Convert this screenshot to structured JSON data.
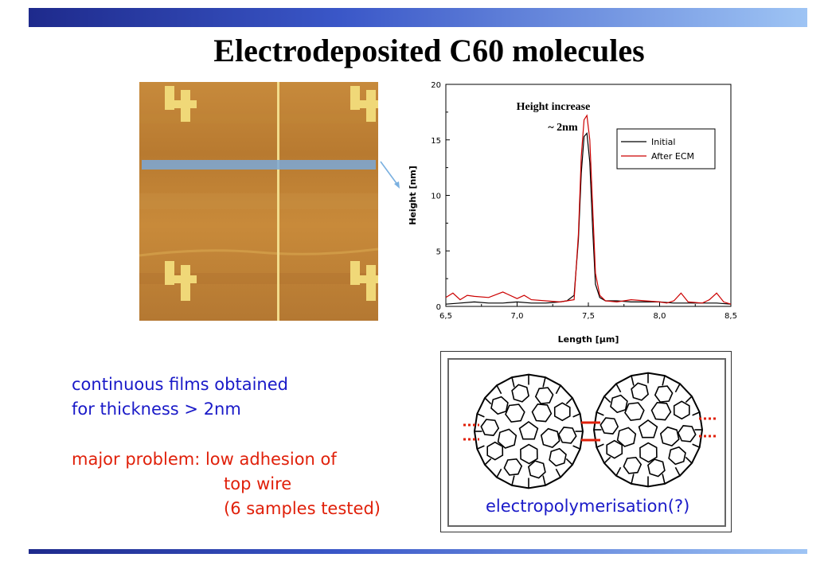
{
  "slide": {
    "title": "Electrodeposited C60 molecules"
  },
  "afm_image": {
    "wire_labels": [
      "4",
      "4",
      "4",
      "4"
    ]
  },
  "text": {
    "line1": "continuous films obtained",
    "line2": "for thickness > 2nm",
    "line3": "major problem: low adhesion of",
    "line4": "top wire",
    "line5": "(6 samples tested)"
  },
  "molecule_panel": {
    "caption": "electropolymerisation(?)"
  },
  "colors": {
    "accent_blue": "#1a1ac8",
    "accent_red": "#e0200a",
    "initial_series": "#000000",
    "after_series": "#cc0000",
    "afm_base": "#b87830",
    "afm_highlight": "#f0d878",
    "scan_line": "#7aa8d8"
  },
  "chart_data": {
    "type": "line",
    "annotation_line1": "Height increase",
    "annotation_line2": "~ 2nm",
    "xlabel": "Length [μm]",
    "ylabel": "Height [nm]",
    "xlim": [
      6.5,
      8.5
    ],
    "ylim": [
      0,
      20
    ],
    "xticks": [
      "6,5",
      "7,0",
      "7,5",
      "8,0",
      "8,5"
    ],
    "yticks": [
      "0",
      "5",
      "10",
      "15",
      "20"
    ],
    "grid": false,
    "legend_position": "top-right",
    "series": [
      {
        "name": "Initial",
        "color": "#000000",
        "x": [
          6.5,
          6.6,
          6.7,
          6.8,
          6.9,
          7.0,
          7.1,
          7.2,
          7.3,
          7.35,
          7.4,
          7.43,
          7.45,
          7.47,
          7.49,
          7.51,
          7.53,
          7.55,
          7.58,
          7.62,
          7.7,
          7.8,
          7.9,
          8.0,
          8.1,
          8.2,
          8.3,
          8.4,
          8.5
        ],
        "y": [
          0.2,
          0.3,
          0.4,
          0.3,
          0.3,
          0.4,
          0.3,
          0.3,
          0.4,
          0.5,
          1.0,
          6.0,
          12.0,
          15.3,
          15.6,
          13.0,
          7.0,
          2.0,
          0.8,
          0.5,
          0.5,
          0.4,
          0.4,
          0.4,
          0.3,
          0.3,
          0.3,
          0.3,
          0.2
        ]
      },
      {
        "name": "After ECM",
        "color": "#cc0000",
        "x": [
          6.5,
          6.55,
          6.6,
          6.65,
          6.7,
          6.8,
          6.9,
          7.0,
          7.05,
          7.1,
          7.2,
          7.3,
          7.35,
          7.4,
          7.43,
          7.45,
          7.47,
          7.49,
          7.51,
          7.53,
          7.55,
          7.58,
          7.62,
          7.7,
          7.8,
          7.9,
          8.0,
          8.05,
          8.1,
          8.15,
          8.2,
          8.3,
          8.35,
          8.4,
          8.45,
          8.5
        ],
        "y": [
          0.8,
          1.2,
          0.6,
          1.0,
          0.9,
          0.8,
          1.3,
          0.7,
          1.0,
          0.6,
          0.5,
          0.4,
          0.5,
          0.6,
          6.5,
          13.5,
          16.8,
          17.2,
          15.0,
          9.0,
          3.0,
          1.0,
          0.5,
          0.4,
          0.6,
          0.5,
          0.4,
          0.3,
          0.5,
          1.2,
          0.4,
          0.3,
          0.6,
          1.2,
          0.4,
          0.2
        ]
      }
    ]
  }
}
